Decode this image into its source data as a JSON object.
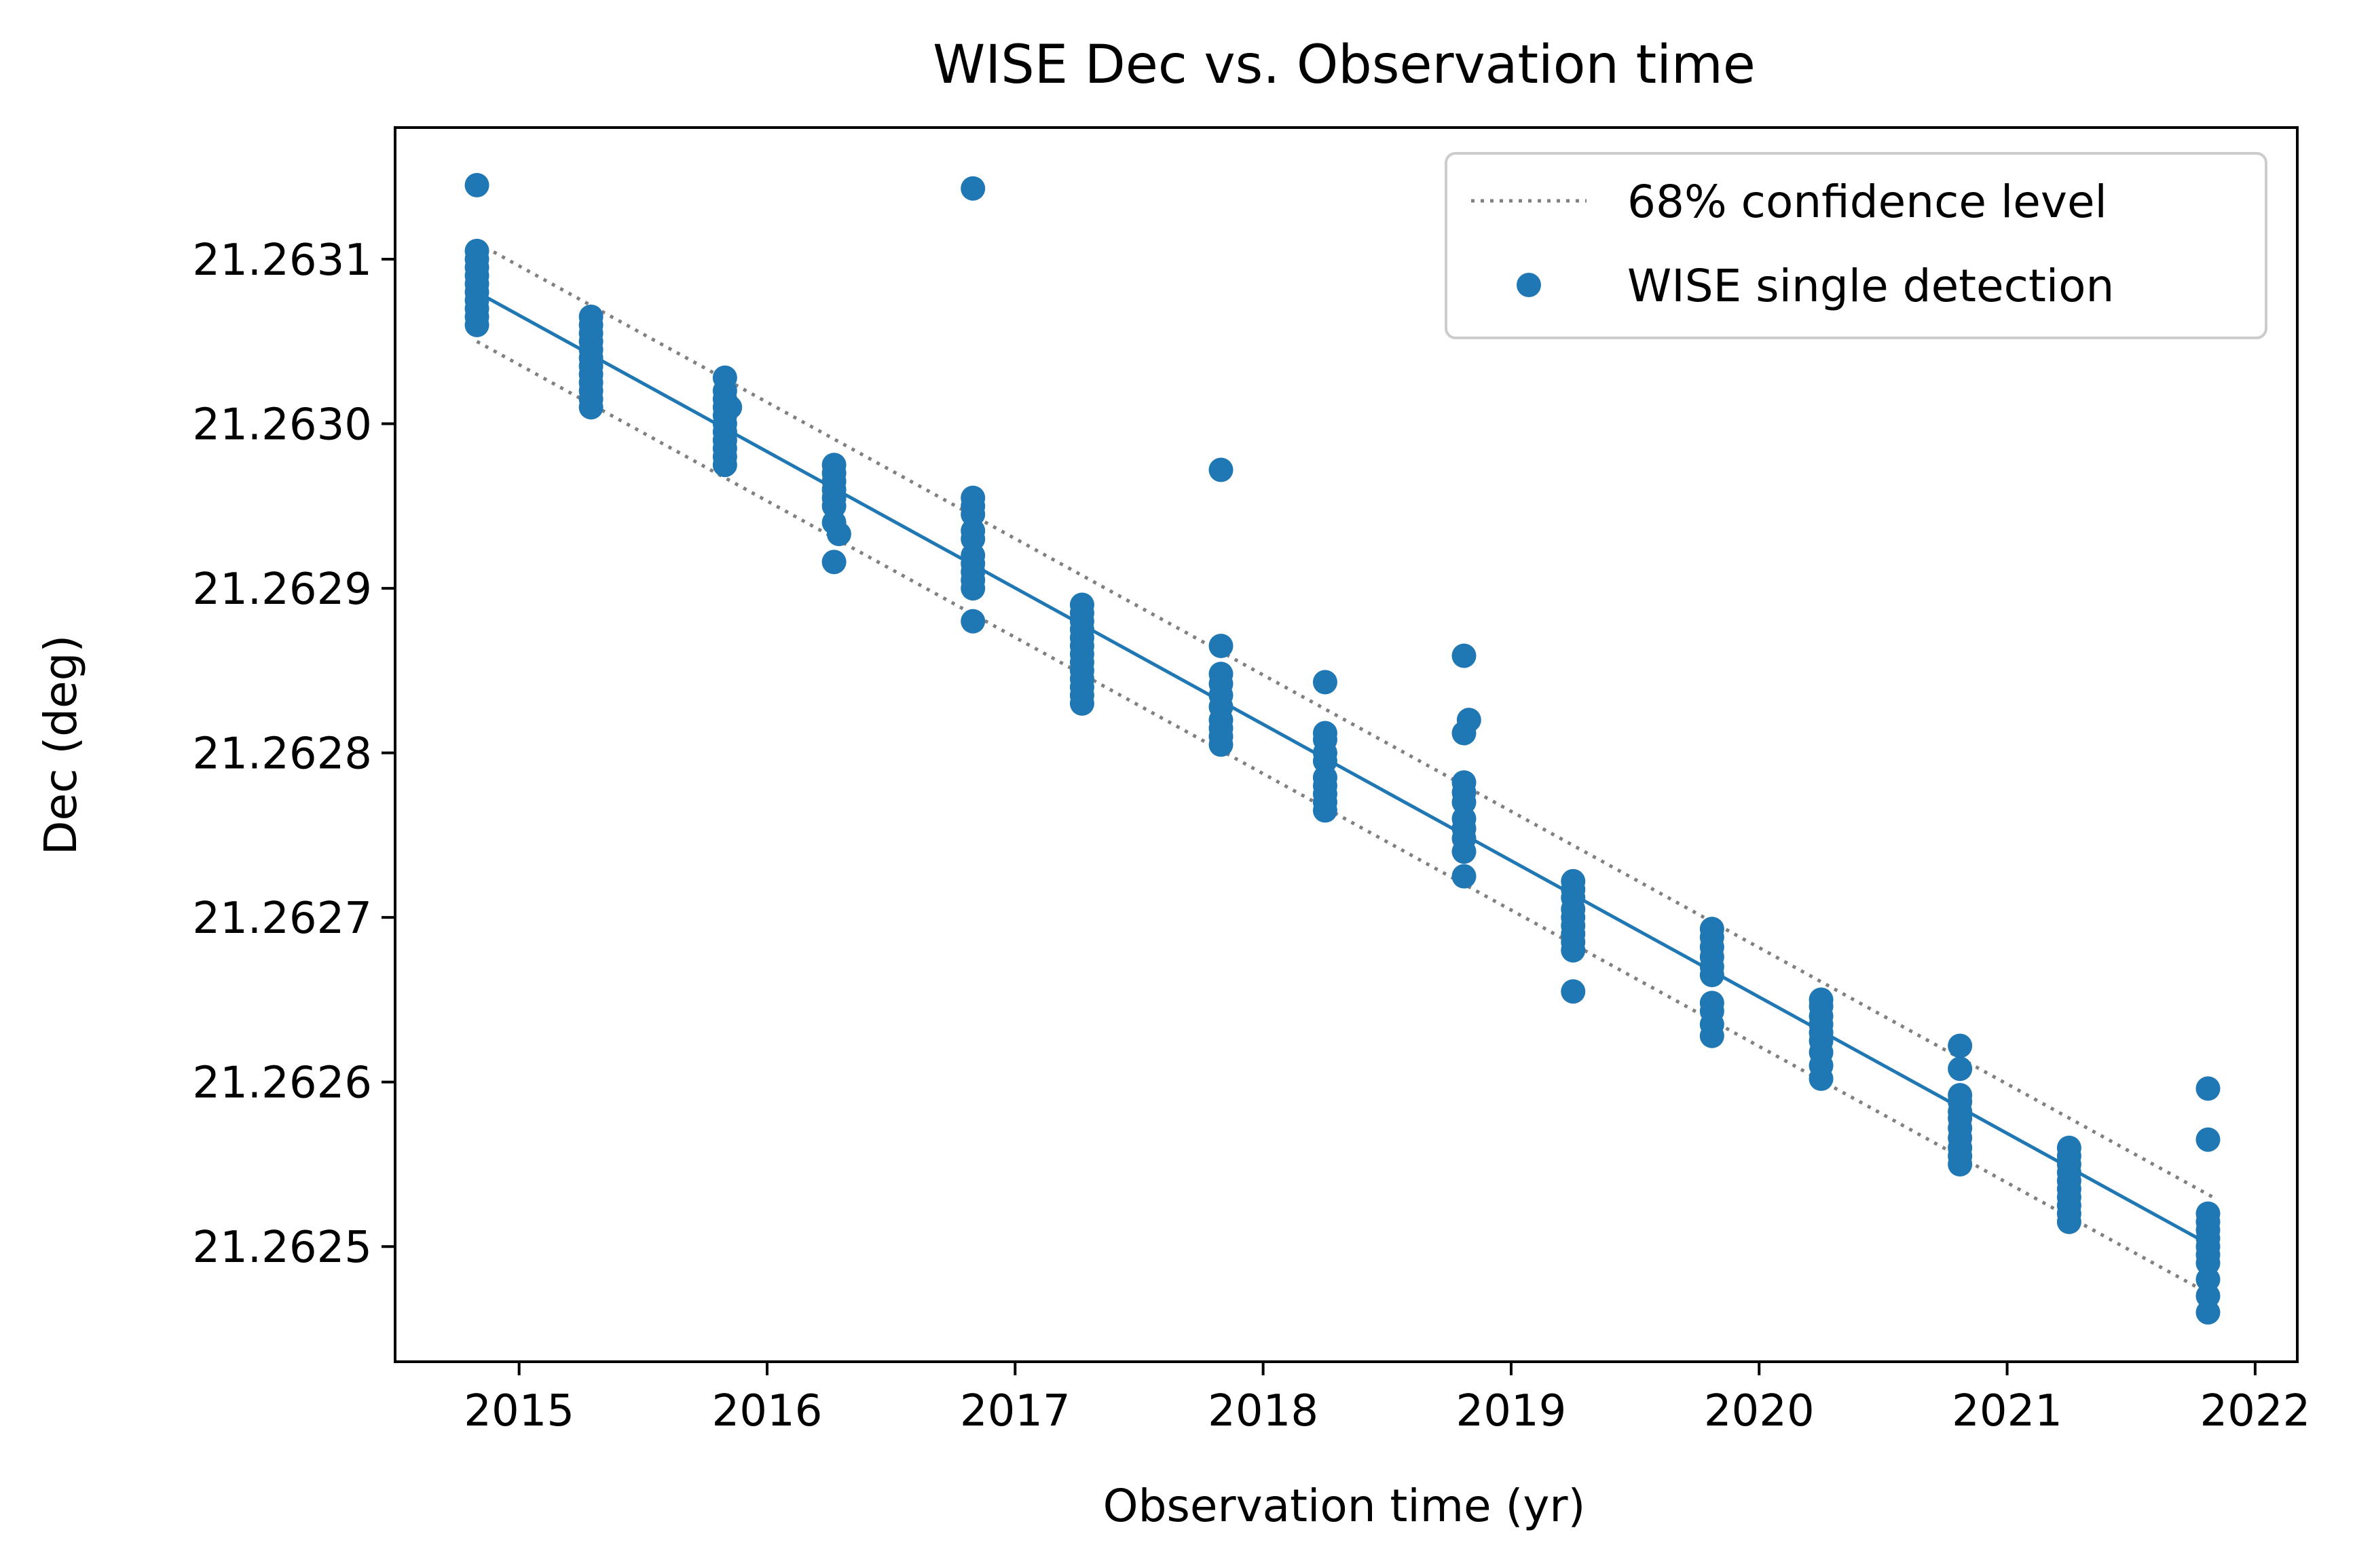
{
  "chart_data": {
    "type": "scatter",
    "title": "WISE Dec vs. Observation time",
    "xlabel": "Observation time (yr)",
    "ylabel": "Dec (deg)",
    "xlim": [
      2014.5,
      2022.17
    ],
    "ylim": [
      21.26243,
      21.26318
    ],
    "xticks": [
      "2015",
      "2016",
      "2017",
      "2018",
      "2019",
      "2020",
      "2021",
      "2022"
    ],
    "yticks": [
      "21.2625",
      "21.2626",
      "21.2627",
      "21.2628",
      "21.2629",
      "21.2630",
      "21.2631"
    ],
    "grid": false,
    "legend_position": "top-right",
    "colors": {
      "series": "#1f77b4",
      "confidence": "#808080"
    },
    "legend": [
      {
        "label": "68% confidence level",
        "kind": "dotted-line"
      },
      {
        "label": "WISE single detection",
        "kind": "point"
      }
    ],
    "fit_line": {
      "x": [
        2014.83,
        2021.83
      ],
      "y": [
        21.26308,
        21.2625
      ]
    },
    "confidence_upper": {
      "x": [
        2014.83,
        2021.83
      ],
      "y": [
        21.26311,
        21.26253
      ]
    },
    "confidence_lower": {
      "x": [
        2014.83,
        2021.83
      ],
      "y": [
        21.26305,
        21.26247
      ]
    },
    "series": [
      {
        "name": "WISE single detection",
        "points": [
          [
            2014.83,
            21.263145
          ],
          [
            2014.83,
            21.263105
          ],
          [
            2014.83,
            21.2631
          ],
          [
            2014.83,
            21.263095
          ],
          [
            2014.83,
            21.26309
          ],
          [
            2014.83,
            21.263085
          ],
          [
            2014.83,
            21.26308
          ],
          [
            2014.83,
            21.263075
          ],
          [
            2014.83,
            21.26307
          ],
          [
            2014.83,
            21.263065
          ],
          [
            2014.83,
            21.26306
          ],
          [
            2015.29,
            21.263065
          ],
          [
            2015.29,
            21.26306
          ],
          [
            2015.29,
            21.263055
          ],
          [
            2015.29,
            21.26305
          ],
          [
            2015.29,
            21.263045
          ],
          [
            2015.29,
            21.26304
          ],
          [
            2015.29,
            21.263035
          ],
          [
            2015.29,
            21.26303
          ],
          [
            2015.29,
            21.263025
          ],
          [
            2015.29,
            21.26302
          ],
          [
            2015.29,
            21.263015
          ],
          [
            2015.29,
            21.26301
          ],
          [
            2015.83,
            21.263028
          ],
          [
            2015.83,
            21.26302
          ],
          [
            2015.83,
            21.263015
          ],
          [
            2015.83,
            21.26301
          ],
          [
            2015.85,
            21.26301
          ],
          [
            2015.83,
            21.263005
          ],
          [
            2015.83,
            21.263
          ],
          [
            2015.83,
            21.262995
          ],
          [
            2015.83,
            21.26299
          ],
          [
            2015.83,
            21.262985
          ],
          [
            2015.83,
            21.26298
          ],
          [
            2015.83,
            21.262975
          ],
          [
            2016.27,
            21.262975
          ],
          [
            2016.27,
            21.26297
          ],
          [
            2016.27,
            21.262965
          ],
          [
            2016.27,
            21.26296
          ],
          [
            2016.27,
            21.262955
          ],
          [
            2016.27,
            21.26295
          ],
          [
            2016.27,
            21.26294
          ],
          [
            2016.29,
            21.262933
          ],
          [
            2016.27,
            21.262916
          ],
          [
            2016.83,
            21.263143
          ],
          [
            2016.83,
            21.262955
          ],
          [
            2016.83,
            21.26295
          ],
          [
            2016.83,
            21.262945
          ],
          [
            2016.83,
            21.262935
          ],
          [
            2016.83,
            21.26293
          ],
          [
            2016.83,
            21.26292
          ],
          [
            2016.83,
            21.262915
          ],
          [
            2016.83,
            21.26291
          ],
          [
            2016.83,
            21.262905
          ],
          [
            2016.83,
            21.2629
          ],
          [
            2016.83,
            21.26288
          ],
          [
            2017.27,
            21.26289
          ],
          [
            2017.27,
            21.262885
          ],
          [
            2017.27,
            21.26288
          ],
          [
            2017.27,
            21.262875
          ],
          [
            2017.27,
            21.26287
          ],
          [
            2017.27,
            21.262865
          ],
          [
            2017.27,
            21.26286
          ],
          [
            2017.27,
            21.262855
          ],
          [
            2017.27,
            21.26285
          ],
          [
            2017.27,
            21.262845
          ],
          [
            2017.27,
            21.26284
          ],
          [
            2017.27,
            21.262835
          ],
          [
            2017.27,
            21.26283
          ],
          [
            2017.83,
            21.262972
          ],
          [
            2017.83,
            21.262865
          ],
          [
            2017.83,
            21.262848
          ],
          [
            2017.83,
            21.262842
          ],
          [
            2017.83,
            21.262835
          ],
          [
            2017.83,
            21.262828
          ],
          [
            2017.83,
            21.26282
          ],
          [
            2017.83,
            21.262815
          ],
          [
            2017.83,
            21.26281
          ],
          [
            2017.83,
            21.262805
          ],
          [
            2018.25,
            21.262843
          ],
          [
            2018.25,
            21.262812
          ],
          [
            2018.25,
            21.262808
          ],
          [
            2018.25,
            21.2628
          ],
          [
            2018.25,
            21.262795
          ],
          [
            2018.25,
            21.262785
          ],
          [
            2018.25,
            21.26278
          ],
          [
            2018.25,
            21.262775
          ],
          [
            2018.25,
            21.26277
          ],
          [
            2018.25,
            21.262765
          ],
          [
            2018.81,
            21.262859
          ],
          [
            2018.83,
            21.26282
          ],
          [
            2018.81,
            21.262812
          ],
          [
            2018.81,
            21.262782
          ],
          [
            2018.81,
            21.262776
          ],
          [
            2018.81,
            21.26277
          ],
          [
            2018.81,
            21.26276
          ],
          [
            2018.81,
            21.262754
          ],
          [
            2018.81,
            21.262748
          ],
          [
            2018.81,
            21.26274
          ],
          [
            2018.81,
            21.262725
          ],
          [
            2019.25,
            21.262722
          ],
          [
            2019.25,
            21.262717
          ],
          [
            2019.25,
            21.262712
          ],
          [
            2019.25,
            21.262705
          ],
          [
            2019.25,
            21.2627
          ],
          [
            2019.25,
            21.262695
          ],
          [
            2019.25,
            21.26269
          ],
          [
            2019.25,
            21.262685
          ],
          [
            2019.25,
            21.26268
          ],
          [
            2019.25,
            21.262655
          ],
          [
            2019.81,
            21.262693
          ],
          [
            2019.81,
            21.262688
          ],
          [
            2019.81,
            21.262682
          ],
          [
            2019.81,
            21.262676
          ],
          [
            2019.81,
            21.26267
          ],
          [
            2019.81,
            21.262665
          ],
          [
            2019.81,
            21.262648
          ],
          [
            2019.81,
            21.262643
          ],
          [
            2019.81,
            21.262635
          ],
          [
            2019.81,
            21.262628
          ],
          [
            2020.25,
            21.26265
          ],
          [
            2020.25,
            21.262646
          ],
          [
            2020.25,
            21.26264
          ],
          [
            2020.25,
            21.262635
          ],
          [
            2020.25,
            21.26263
          ],
          [
            2020.25,
            21.262625
          ],
          [
            2020.25,
            21.262618
          ],
          [
            2020.25,
            21.26261
          ],
          [
            2020.25,
            21.262602
          ],
          [
            2020.81,
            21.262622
          ],
          [
            2020.81,
            21.262608
          ],
          [
            2020.81,
            21.262592
          ],
          [
            2020.81,
            21.262588
          ],
          [
            2020.81,
            21.262582
          ],
          [
            2020.81,
            21.262578
          ],
          [
            2020.81,
            21.262572
          ],
          [
            2020.81,
            21.262566
          ],
          [
            2020.81,
            21.26256
          ],
          [
            2020.81,
            21.262555
          ],
          [
            2020.81,
            21.26255
          ],
          [
            2021.25,
            21.26256
          ],
          [
            2021.25,
            21.262555
          ],
          [
            2021.25,
            21.26255
          ],
          [
            2021.25,
            21.262545
          ],
          [
            2021.25,
            21.26254
          ],
          [
            2021.25,
            21.262535
          ],
          [
            2021.25,
            21.26253
          ],
          [
            2021.25,
            21.262525
          ],
          [
            2021.25,
            21.26252
          ],
          [
            2021.25,
            21.262515
          ],
          [
            2021.81,
            21.262596
          ],
          [
            2021.81,
            21.262565
          ],
          [
            2021.81,
            21.26252
          ],
          [
            2021.81,
            21.262515
          ],
          [
            2021.81,
            21.26251
          ],
          [
            2021.81,
            21.262505
          ],
          [
            2021.81,
            21.2625
          ],
          [
            2021.81,
            21.262495
          ],
          [
            2021.81,
            21.26249
          ],
          [
            2021.81,
            21.26248
          ],
          [
            2021.81,
            21.26247
          ],
          [
            2021.81,
            21.26246
          ]
        ]
      }
    ]
  }
}
